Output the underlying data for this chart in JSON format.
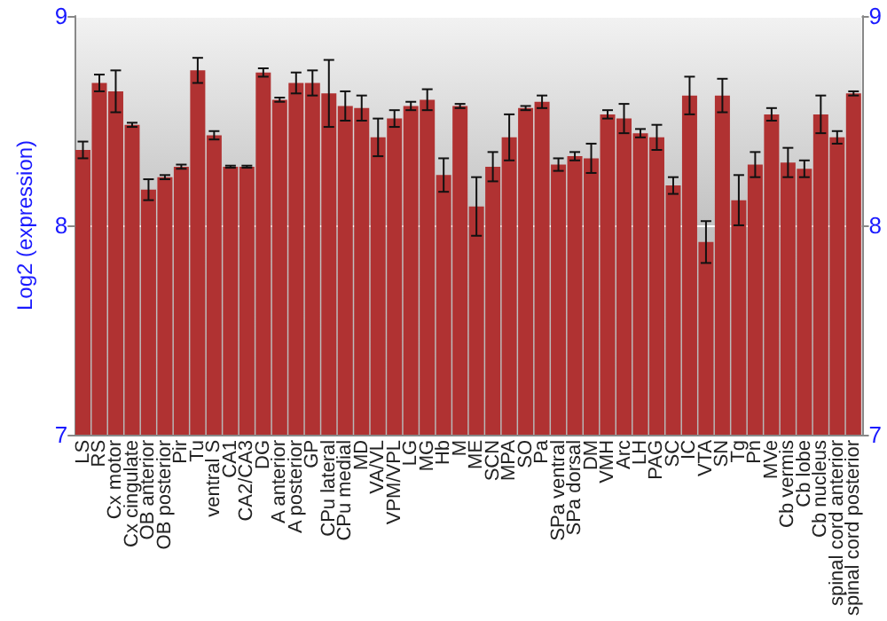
{
  "chart_data": {
    "type": "bar",
    "ylabel": "Log2 (expression)",
    "categories": [
      "LS",
      "RS",
      "Cx motor",
      "Cx cingulate",
      "OB anterior",
      "OB posterior",
      "Pir",
      "Tu",
      "ventral S",
      "CA1",
      "CA2/CA3",
      "DG",
      "A anterior",
      "A posterior",
      "GP",
      "CPu lateral",
      "CPu medial",
      "MD",
      "VA/VL",
      "VPM/VPL",
      "LG",
      "MG",
      "Hb",
      "M",
      "ME",
      "SCN",
      "MPA",
      "SO",
      "Pa",
      "SPa ventral",
      "SPa dorsal",
      "DM",
      "VMH",
      "Arc",
      "LH",
      "PAG",
      "SC",
      "IC",
      "VTA",
      "SN",
      "Tg",
      "Pn",
      "MVe",
      "Cb vermis",
      "Cb lobe",
      "Cb nucleus",
      "spinal cord anterior",
      "spinal cord posterior"
    ],
    "values": [
      8.36,
      8.68,
      8.64,
      8.48,
      8.17,
      8.23,
      8.28,
      8.74,
      8.43,
      8.28,
      8.28,
      8.73,
      8.6,
      8.68,
      8.68,
      8.63,
      8.57,
      8.56,
      8.42,
      8.51,
      8.57,
      8.6,
      8.24,
      8.57,
      8.09,
      8.28,
      8.42,
      8.56,
      8.59,
      8.29,
      8.33,
      8.32,
      8.53,
      8.51,
      8.44,
      8.42,
      8.19,
      8.62,
      7.92,
      8.62,
      8.12,
      8.29,
      8.53,
      8.3,
      8.27,
      8.53,
      8.42,
      8.63
    ],
    "errors": [
      0.04,
      0.04,
      0.1,
      0.01,
      0.05,
      0.01,
      0.01,
      0.06,
      0.02,
      0.005,
      0.005,
      0.02,
      0.01,
      0.05,
      0.06,
      0.16,
      0.07,
      0.06,
      0.09,
      0.04,
      0.02,
      0.05,
      0.08,
      0.01,
      0.14,
      0.07,
      0.11,
      0.01,
      0.03,
      0.03,
      0.02,
      0.07,
      0.02,
      0.07,
      0.02,
      0.06,
      0.04,
      0.09,
      0.1,
      0.08,
      0.12,
      0.06,
      0.03,
      0.07,
      0.04,
      0.09,
      0.03,
      0.01
    ],
    "color": "#b03232",
    "ylim": [
      7,
      9
    ],
    "yticks": [
      7,
      8,
      9
    ],
    "y2lim": [
      7,
      9
    ],
    "y2ticks": [
      7,
      8,
      9
    ],
    "grid": "y"
  }
}
